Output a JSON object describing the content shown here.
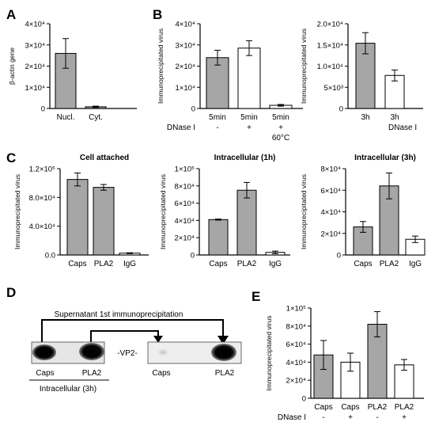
{
  "panel_labels": {
    "A": "A",
    "B": "B",
    "C": "C",
    "D": "D",
    "E": "E"
  },
  "chart_data": [
    {
      "id": "A",
      "type": "bar",
      "title": "",
      "ylabel": "β-actin gene",
      "ylim": [
        0,
        40000
      ],
      "yticks": [
        "0",
        "1×10⁴",
        "2×10⁴",
        "3×10⁴",
        "4×10⁴"
      ],
      "categories": [
        "Nucl.",
        "Cyt."
      ],
      "values": [
        26000,
        800
      ],
      "errors": [
        7000,
        300
      ],
      "fills": [
        "#a6a6a6",
        "#a6a6a6"
      ]
    },
    {
      "id": "B1",
      "type": "bar",
      "title": "",
      "ylabel": "Immunoprecipitated virus",
      "ylim": [
        0,
        40000
      ],
      "yticks": [
        "0",
        "1×10⁴",
        "2×10⁴",
        "3×10⁴",
        "4×10⁴"
      ],
      "categories": [
        "5min",
        "5min",
        "5min"
      ],
      "row2_label": "DNase I",
      "row2": [
        "-",
        "+",
        "+"
      ],
      "row3": [
        "",
        "",
        "60°C"
      ],
      "values": [
        24000,
        28500,
        1500
      ],
      "errors": [
        3500,
        3500,
        400
      ],
      "fills": [
        "#a6a6a6",
        "#ffffff",
        "#ffffff"
      ]
    },
    {
      "id": "B2",
      "type": "bar",
      "title": "",
      "ylabel": "Immunoprecipitated virus",
      "ylim": [
        0,
        20000
      ],
      "yticks": [
        "0",
        "5×10³",
        "1.0×10⁴",
        "1.5×10⁴",
        "2.0×10⁴"
      ],
      "categories": [
        "3h",
        "3h"
      ],
      "row2_caption": "DNase I",
      "values": [
        15400,
        7800
      ],
      "errors": [
        2500,
        1300
      ],
      "fills": [
        "#a6a6a6",
        "#ffffff"
      ]
    },
    {
      "id": "C1",
      "type": "bar",
      "title": "Cell attached",
      "ylabel": "Immunoprecipitated virus",
      "ylim": [
        0,
        120000
      ],
      "yticks": [
        "0.0",
        "4.0×10⁴",
        "8.0×10⁴",
        "1.2×10⁵"
      ],
      "categories": [
        "Caps",
        "PLA2",
        "IgG"
      ],
      "values": [
        105000,
        94000,
        2500
      ],
      "errors": [
        9000,
        4000,
        600
      ],
      "fills": [
        "#a6a6a6",
        "#a6a6a6",
        "#ffffff"
      ]
    },
    {
      "id": "C2",
      "type": "bar",
      "title": "Intracellular (1h)",
      "ylabel": "Immunoprecipitated virus",
      "ylim": [
        0,
        100000
      ],
      "yticks": [
        "0",
        "2×10⁴",
        "4×10⁴",
        "6×10⁴",
        "8×10⁴",
        "1×10⁵"
      ],
      "categories": [
        "Caps",
        "PLA2",
        "IgG"
      ],
      "values": [
        41000,
        75000,
        3000
      ],
      "errors": [
        600,
        9000,
        1500
      ],
      "fills": [
        "#a6a6a6",
        "#a6a6a6",
        "#ffffff"
      ]
    },
    {
      "id": "C3",
      "type": "bar",
      "title": "Intracellular (3h)",
      "ylabel": "Immunoprecipitated virus",
      "ylim": [
        0,
        80000
      ],
      "yticks": [
        "0",
        "2×10⁴",
        "4×10⁴",
        "6×10⁴",
        "8×10⁴"
      ],
      "categories": [
        "Caps",
        "PLA2",
        "IgG"
      ],
      "values": [
        26000,
        64000,
        14500
      ],
      "errors": [
        5000,
        12000,
        3000
      ],
      "fills": [
        "#a6a6a6",
        "#a6a6a6",
        "#ffffff"
      ]
    },
    {
      "id": "E",
      "type": "bar",
      "title": "",
      "ylabel": "Immunoprecipitated virus",
      "ylim": [
        0,
        100000
      ],
      "yticks": [
        "0",
        "2×10⁴",
        "4×10⁴",
        "6×10⁴",
        "8×10⁴",
        "1×10⁵"
      ],
      "categories": [
        "Caps",
        "Caps",
        "PLA2",
        "PLA2"
      ],
      "row2_label": "DNase I",
      "row2": [
        "-",
        "+",
        "-",
        "+"
      ],
      "values": [
        48000,
        40000,
        82000,
        37000
      ],
      "errors": [
        16000,
        10000,
        14000,
        6000
      ],
      "fills": [
        "#a6a6a6",
        "#ffffff",
        "#a6a6a6",
        "#ffffff"
      ]
    }
  ],
  "western_blot": {
    "supernatant_label": "Supernatant 1st immunoprecipitation",
    "band_label": "-VP2-",
    "lanes_left": [
      "Caps",
      "PLA2"
    ],
    "lanes_right": [
      "Caps",
      "PLA2"
    ],
    "group_label": "Intracellular (3h)"
  }
}
